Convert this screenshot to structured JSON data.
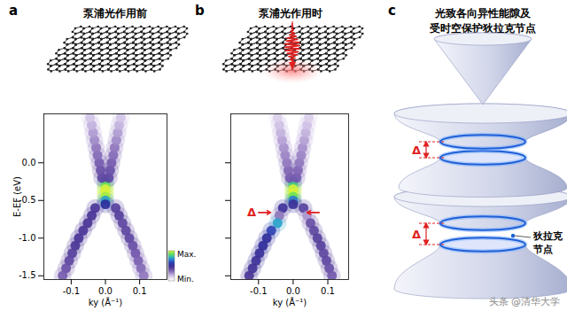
{
  "chart_data": [
    {
      "type": "heatmap",
      "label": "a",
      "title": "泵浦光作用前",
      "xlabel": "ky (Å⁻¹)",
      "ylabel": "E-EF (eV)",
      "xlim": [
        -0.18,
        0.18
      ],
      "ylim": [
        -1.55,
        0.65
      ],
      "xticks": [
        -0.1,
        {
          "value": 0,
          "label": "0.0"
        },
        0.1
      ],
      "yticks": [
        {
          "value": 0,
          "label": "0.0"
        },
        -0.5,
        {
          "value": -1,
          "label": "-1.0"
        },
        -1.5
      ],
      "cells": [
        [
          0,
          -0.25,
          0.7
        ],
        [
          0,
          -0.3,
          0.9
        ],
        [
          0,
          -0.35,
          1
        ],
        [
          0,
          -0.4,
          1
        ],
        [
          0,
          -0.45,
          0.95
        ],
        [
          0,
          -0.5,
          0.75
        ],
        [
          0,
          -0.55,
          0.55
        ],
        [
          -0.01,
          -0.2,
          0.4
        ],
        [
          -0.014,
          -0.1,
          0.38
        ],
        [
          -0.018,
          0,
          0.35
        ],
        [
          -0.023,
          0.1,
          0.32
        ],
        [
          -0.027,
          0.2,
          0.3
        ],
        [
          -0.032,
          0.3,
          0.27
        ],
        [
          -0.036,
          0.4,
          0.24
        ],
        [
          -0.04,
          0.5,
          0.2
        ],
        [
          -0.045,
          0.6,
          0.16
        ],
        [
          0.01,
          -0.2,
          0.4
        ],
        [
          0.014,
          -0.1,
          0.38
        ],
        [
          0.018,
          0,
          0.35
        ],
        [
          0.023,
          0.1,
          0.32
        ],
        [
          0.027,
          0.2,
          0.3
        ],
        [
          0.032,
          0.3,
          0.27
        ],
        [
          0.036,
          0.4,
          0.24
        ],
        [
          0.04,
          0.5,
          0.2
        ],
        [
          0.045,
          0.6,
          0.16
        ],
        [
          -0.03,
          -0.6,
          0.45
        ],
        [
          -0.04,
          -0.7,
          0.45
        ],
        [
          -0.052,
          -0.8,
          0.45
        ],
        [
          -0.065,
          -0.9,
          0.45
        ],
        [
          -0.078,
          -1.0,
          0.45
        ],
        [
          -0.088,
          -1.1,
          0.45
        ],
        [
          -0.097,
          -1.2,
          0.42
        ],
        [
          -0.106,
          -1.3,
          0.4
        ],
        [
          -0.115,
          -1.4,
          0.38
        ],
        [
          -0.125,
          -1.5,
          0.35
        ],
        [
          0.03,
          -0.6,
          0.42
        ],
        [
          0.04,
          -0.7,
          0.42
        ],
        [
          0.05,
          -0.8,
          0.4
        ],
        [
          0.06,
          -0.9,
          0.4
        ],
        [
          0.07,
          -1.0,
          0.4
        ],
        [
          0.08,
          -1.1,
          0.38
        ],
        [
          0.088,
          -1.2,
          0.36
        ],
        [
          0.096,
          -1.3,
          0.34
        ],
        [
          0.104,
          -1.4,
          0.32
        ],
        [
          0.112,
          -1.5,
          0.3
        ]
      ],
      "colorbar": {
        "range": [
          0,
          1
        ],
        "max_label": "Max.",
        "min_label": "Min."
      }
    },
    {
      "type": "heatmap",
      "label": "b",
      "title": "泵浦光作用时",
      "xlabel": "ky (Å⁻¹)",
      "tick_labels": "x",
      "xlim": [
        -0.18,
        0.16
      ],
      "ylim": [
        -1.55,
        0.65
      ],
      "xticks": [
        -0.1,
        {
          "value": 0,
          "label": "0.0"
        },
        0.1
      ],
      "yticks": [
        0,
        -0.5,
        -1,
        -1.5
      ],
      "cells": [
        [
          0,
          -0.25,
          0.65
        ],
        [
          0,
          -0.3,
          0.85
        ],
        [
          0,
          -0.35,
          1
        ],
        [
          0,
          -0.4,
          1
        ],
        [
          0,
          -0.45,
          0.9
        ],
        [
          0,
          -0.5,
          0.7
        ],
        [
          0,
          -0.55,
          0.5
        ],
        [
          -0.01,
          -0.2,
          0.35
        ],
        [
          -0.014,
          -0.1,
          0.33
        ],
        [
          -0.018,
          0,
          0.3
        ],
        [
          -0.023,
          0.1,
          0.28
        ],
        [
          -0.027,
          0.2,
          0.26
        ],
        [
          -0.032,
          0.3,
          0.23
        ],
        [
          -0.036,
          0.4,
          0.2
        ],
        [
          -0.04,
          0.5,
          0.17
        ],
        [
          -0.045,
          0.6,
          0.14
        ],
        [
          0.01,
          -0.2,
          0.35
        ],
        [
          0.014,
          -0.1,
          0.33
        ],
        [
          0.018,
          0,
          0.3
        ],
        [
          0.023,
          0.1,
          0.28
        ],
        [
          0.027,
          0.2,
          0.26
        ],
        [
          0.032,
          0.3,
          0.23
        ],
        [
          0.036,
          0.4,
          0.2
        ],
        [
          0.04,
          0.5,
          0.17
        ],
        [
          0.045,
          0.6,
          0.14
        ],
        [
          -0.03,
          -0.6,
          0.5
        ],
        [
          -0.04,
          -0.7,
          0.3
        ],
        [
          -0.045,
          -0.8,
          0.75
        ],
        [
          -0.063,
          -0.9,
          0.6
        ],
        [
          -0.076,
          -1.0,
          0.55
        ],
        [
          -0.087,
          -1.1,
          0.55
        ],
        [
          -0.097,
          -1.2,
          0.52
        ],
        [
          -0.107,
          -1.3,
          0.5
        ],
        [
          -0.117,
          -1.4,
          0.48
        ],
        [
          -0.127,
          -1.5,
          0.45
        ],
        [
          0.03,
          -0.6,
          0.42
        ],
        [
          0.04,
          -0.7,
          0.25
        ],
        [
          0.05,
          -0.8,
          0.38
        ],
        [
          0.06,
          -0.9,
          0.4
        ],
        [
          0.07,
          -1.0,
          0.42
        ],
        [
          0.08,
          -1.1,
          0.42
        ],
        [
          0.088,
          -1.2,
          0.4
        ],
        [
          0.096,
          -1.3,
          0.4
        ],
        [
          0.104,
          -1.4,
          0.38
        ],
        [
          0.112,
          -1.5,
          0.36
        ]
      ],
      "annotation": {
        "text": "Δ",
        "E": -0.66,
        "k": -0.12,
        "arrows": [
          [
            -0.1,
            -0.065
          ],
          [
            0.075,
            0.04
          ]
        ]
      }
    }
  ],
  "diagram": {
    "label": "c",
    "title": [
      "光致各向异性能隙及",
      "受时空保护狄拉克节点"
    ],
    "gap_label": "Δ",
    "node_label": [
      "狄拉克",
      "节点"
    ]
  },
  "watermark": "头条 @清华大学"
}
